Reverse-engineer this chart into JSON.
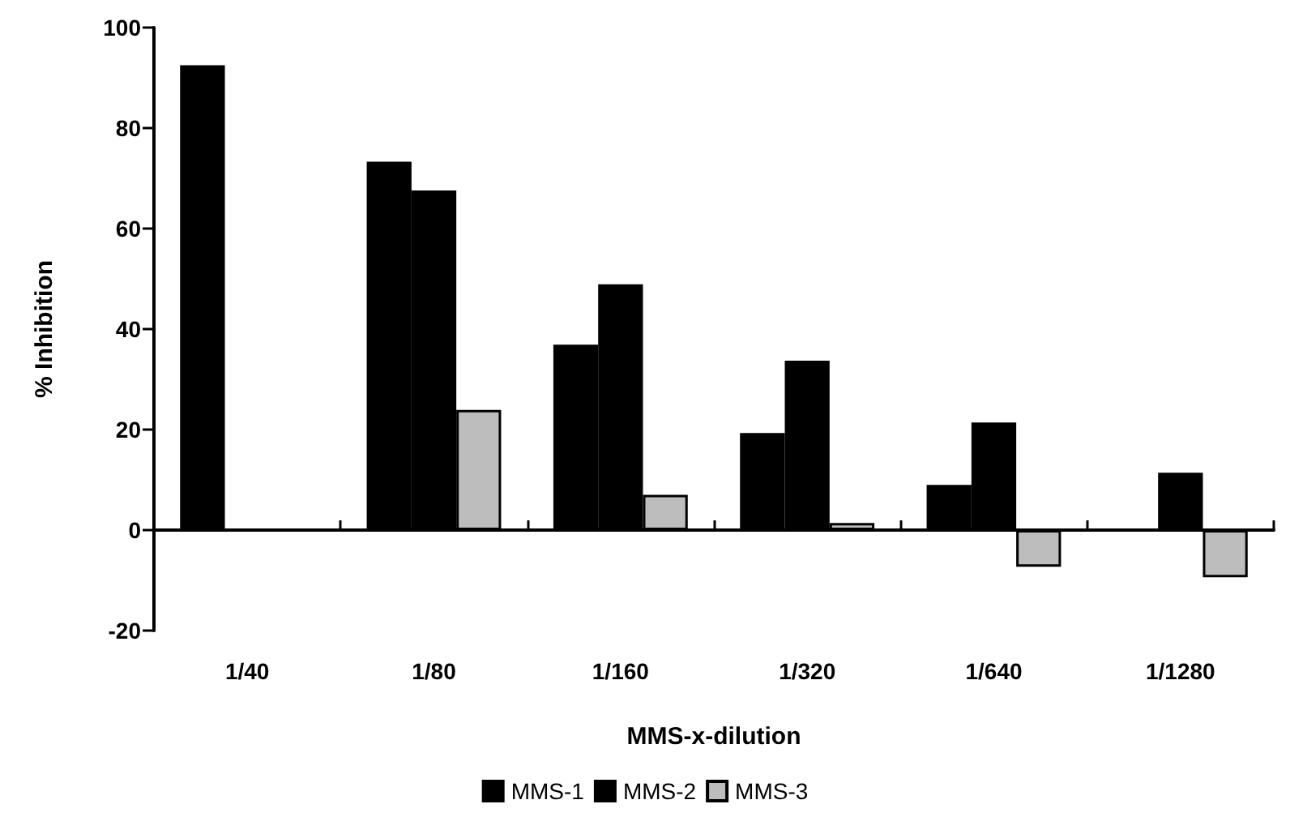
{
  "chart_data": {
    "type": "bar",
    "xlabel": "MMS-x-dilution",
    "ylabel": "% Inhibition",
    "categories": [
      "1/40",
      "1/80",
      "1/160",
      "1/320",
      "1/640",
      "1/1280"
    ],
    "series": [
      {
        "name": "MMS-1",
        "color": "#000000",
        "values": [
          92.5,
          73.3,
          36.9,
          19.3,
          9.0,
          null
        ]
      },
      {
        "name": "MMS-2",
        "color": "#000000",
        "values": [
          null,
          67.6,
          48.9,
          33.7,
          21.4,
          11.4
        ]
      },
      {
        "name": "MMS-3",
        "color": "#bdbdbd",
        "values": [
          null,
          23.9,
          7.0,
          1.4,
          -7.3,
          -9.4
        ]
      }
    ],
    "ylim": [
      -20,
      100
    ],
    "yticks": [
      -20,
      0,
      20,
      40,
      60,
      80,
      100
    ],
    "legend": "bottom"
  }
}
